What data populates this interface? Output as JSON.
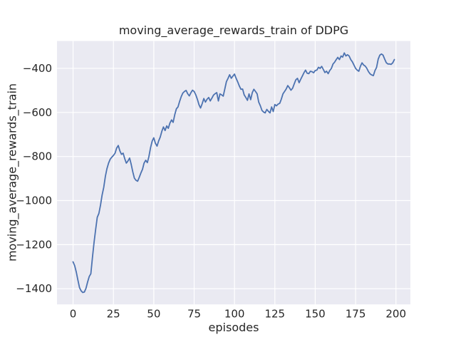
{
  "figure": {
    "background": "#ffffff",
    "text_color": "#262626"
  },
  "chart_data": {
    "type": "line",
    "title": "moving_average_rewards_train of DDPG",
    "xlabel": "episodes",
    "ylabel": "moving_average_rewards_train",
    "style": "seaborn-darkgrid",
    "plot_bg": "#eaeaf2",
    "grid_color": "#ffffff",
    "grid": true,
    "legend": "none",
    "line_color": "#4c72b0",
    "line_width": 1.8,
    "xlim": [
      -9.95,
      208.95
    ],
    "ylim": [
      -1471,
      -276
    ],
    "xticks": [
      0,
      25,
      50,
      75,
      100,
      125,
      150,
      175,
      200
    ],
    "yticks": [
      -400,
      -600,
      -800,
      -1000,
      -1200,
      -1400
    ],
    "series": [
      {
        "name": "moving_average_rewards_train",
        "x": [
          0,
          1,
          2,
          3,
          4,
          5,
          6,
          7,
          8,
          9,
          10,
          11,
          12,
          13,
          14,
          15,
          16,
          17,
          18,
          19,
          20,
          21,
          22,
          23,
          24,
          25,
          26,
          27,
          28,
          29,
          30,
          31,
          32,
          33,
          34,
          35,
          36,
          37,
          38,
          39,
          40,
          41,
          42,
          43,
          44,
          45,
          46,
          47,
          48,
          49,
          50,
          51,
          52,
          53,
          54,
          55,
          56,
          57,
          58,
          59,
          60,
          61,
          62,
          63,
          64,
          65,
          66,
          67,
          68,
          69,
          70,
          71,
          72,
          73,
          74,
          75,
          76,
          77,
          78,
          79,
          80,
          81,
          82,
          83,
          84,
          85,
          86,
          87,
          88,
          89,
          90,
          91,
          92,
          93,
          94,
          95,
          96,
          97,
          98,
          99,
          100,
          101,
          102,
          103,
          104,
          105,
          106,
          107,
          108,
          109,
          110,
          111,
          112,
          113,
          114,
          115,
          116,
          117,
          118,
          119,
          120,
          121,
          122,
          123,
          124,
          125,
          126,
          127,
          128,
          129,
          130,
          131,
          132,
          133,
          134,
          135,
          136,
          137,
          138,
          139,
          140,
          141,
          142,
          143,
          144,
          145,
          146,
          147,
          148,
          149,
          150,
          151,
          152,
          153,
          154,
          155,
          156,
          157,
          158,
          159,
          160,
          161,
          162,
          163,
          164,
          165,
          166,
          167,
          168,
          169,
          170,
          171,
          172,
          173,
          174,
          175,
          176,
          177,
          178,
          179,
          180,
          181,
          182,
          183,
          184,
          185,
          186,
          187,
          188,
          189,
          190,
          191,
          192,
          193,
          194,
          195,
          196,
          197,
          198,
          199
        ],
        "y": [
          -1278,
          -1295,
          -1325,
          -1360,
          -1395,
          -1410,
          -1417,
          -1415,
          -1398,
          -1370,
          -1345,
          -1332,
          -1260,
          -1190,
          -1130,
          -1076,
          -1058,
          -1020,
          -975,
          -940,
          -890,
          -855,
          -830,
          -812,
          -803,
          -795,
          -785,
          -762,
          -750,
          -775,
          -790,
          -785,
          -810,
          -830,
          -820,
          -807,
          -835,
          -870,
          -898,
          -908,
          -912,
          -895,
          -875,
          -858,
          -830,
          -817,
          -828,
          -800,
          -760,
          -730,
          -715,
          -740,
          -753,
          -730,
          -712,
          -685,
          -666,
          -682,
          -661,
          -672,
          -648,
          -634,
          -645,
          -610,
          -583,
          -575,
          -550,
          -528,
          -512,
          -505,
          -500,
          -515,
          -525,
          -510,
          -499,
          -505,
          -520,
          -540,
          -565,
          -580,
          -560,
          -537,
          -553,
          -540,
          -532,
          -548,
          -535,
          -521,
          -515,
          -510,
          -548,
          -516,
          -520,
          -526,
          -494,
          -460,
          -445,
          -429,
          -445,
          -435,
          -426,
          -445,
          -462,
          -480,
          -495,
          -494,
          -520,
          -532,
          -545,
          -516,
          -542,
          -510,
          -495,
          -505,
          -516,
          -553,
          -570,
          -591,
          -598,
          -602,
          -586,
          -595,
          -602,
          -575,
          -596,
          -564,
          -570,
          -562,
          -559,
          -540,
          -516,
          -505,
          -494,
          -478,
          -488,
          -499,
          -490,
          -470,
          -452,
          -445,
          -465,
          -450,
          -435,
          -420,
          -408,
          -422,
          -424,
          -413,
          -415,
          -420,
          -410,
          -408,
          -395,
          -400,
          -391,
          -405,
          -419,
          -413,
          -424,
          -410,
          -400,
          -380,
          -372,
          -360,
          -350,
          -360,
          -344,
          -349,
          -330,
          -344,
          -338,
          -344,
          -360,
          -370,
          -385,
          -400,
          -408,
          -413,
          -390,
          -375,
          -385,
          -390,
          -400,
          -415,
          -425,
          -430,
          -433,
          -410,
          -396,
          -358,
          -340,
          -335,
          -340,
          -358,
          -374,
          -380,
          -380,
          -382,
          -375,
          -360
        ]
      }
    ]
  }
}
